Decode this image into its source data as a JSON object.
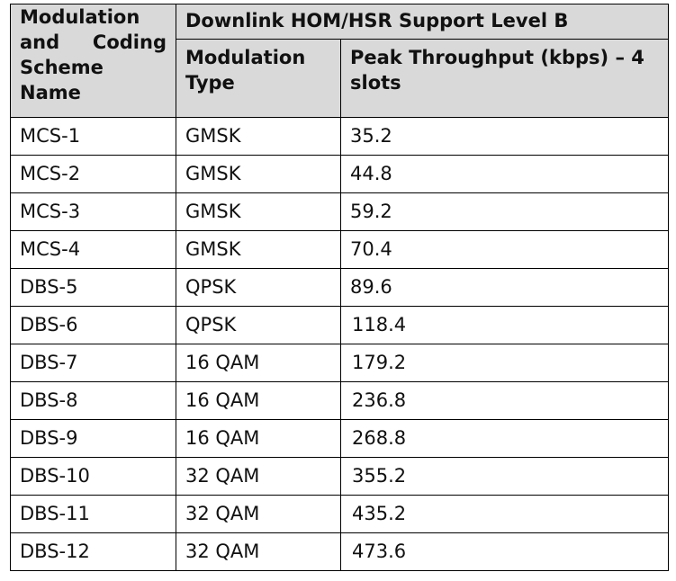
{
  "header": {
    "col1": "Modulation and Coding Scheme Name",
    "group": "Downlink HOM/HSR Support Level B",
    "col2": "Modulation Type",
    "col3": "Peak Throughput (kbps) – 4 slots"
  },
  "rows": [
    {
      "name": "MCS-1",
      "type": "GMSK",
      "value": "35.2"
    },
    {
      "name": "MCS-2",
      "type": "GMSK",
      "value": "44.8"
    },
    {
      "name": "MCS-3",
      "type": "GMSK",
      "value": "59.2"
    },
    {
      "name": "MCS-4",
      "type": "GMSK",
      "value": "70.4"
    },
    {
      "name": "DBS-5",
      "type": "QPSK",
      "value": "89.6"
    },
    {
      "name": "DBS-6",
      "type": "QPSK",
      "value": "118.4"
    },
    {
      "name": "DBS-7",
      "type": "16 QAM",
      "value": "179.2"
    },
    {
      "name": "DBS-8",
      "type": "16 QAM",
      "value": "236.8"
    },
    {
      "name": "DBS-9",
      "type": "16 QAM",
      "value": "268.8"
    },
    {
      "name": "DBS-10",
      "type": "32 QAM",
      "value": "355.2"
    },
    {
      "name": "DBS-11",
      "type": "32 QAM",
      "value": "435.2"
    },
    {
      "name": "DBS-12",
      "type": "32 QAM",
      "value": "473.6"
    }
  ]
}
